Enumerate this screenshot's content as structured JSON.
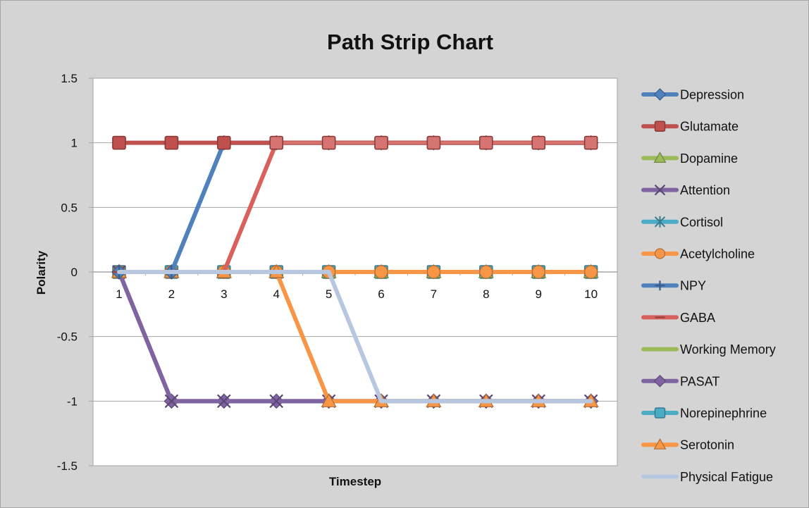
{
  "chart_data": {
    "type": "line",
    "title": "Path Strip Chart",
    "xlabel": "Timestep",
    "ylabel": "Polarity",
    "categories": [
      "1",
      "2",
      "3",
      "4",
      "5",
      "6",
      "7",
      "8",
      "9",
      "10"
    ],
    "yticks": [
      "1.5",
      "1",
      "0.5",
      "0",
      "-0.5",
      "-1",
      "-1.5"
    ],
    "ylim": [
      -1.5,
      1.5
    ],
    "grid": true,
    "legend_position": "right",
    "series": [
      {
        "name": "Depression",
        "values": [
          0,
          0,
          1,
          1,
          1,
          1,
          1,
          1,
          1,
          1
        ],
        "color": "#4f81bd",
        "marker": "diamond"
      },
      {
        "name": "Glutamate",
        "values": [
          1,
          1,
          1,
          1,
          1,
          1,
          1,
          1,
          1,
          1
        ],
        "color": "#c0504d",
        "marker": "square"
      },
      {
        "name": "Dopamine",
        "values": [
          0,
          0,
          0,
          0,
          0,
          0,
          0,
          0,
          0,
          0
        ],
        "color": "#9bbb59",
        "marker": "triangle"
      },
      {
        "name": "Attention",
        "values": [
          0,
          -1,
          -1,
          -1,
          -1,
          -1,
          -1,
          -1,
          -1,
          -1
        ],
        "color": "#8064a2",
        "marker": "x"
      },
      {
        "name": "Cortisol",
        "values": [
          0,
          0,
          0,
          0,
          0,
          0,
          0,
          0,
          0,
          0
        ],
        "color": "#4bacc6",
        "marker": "star"
      },
      {
        "name": "Acetylcholine",
        "values": [
          0,
          0,
          0,
          0,
          0,
          0,
          0,
          0,
          0,
          0
        ],
        "color": "#f79646",
        "marker": "circle"
      },
      {
        "name": "NPY",
        "values": [
          0,
          0,
          1,
          1,
          1,
          1,
          1,
          1,
          1,
          1
        ],
        "color": "#4f81bd",
        "marker": "plus"
      },
      {
        "name": "GABA",
        "values": [
          0,
          0,
          0,
          1,
          1,
          1,
          1,
          1,
          1,
          1
        ],
        "color": "#d9605c",
        "marker": "dash"
      },
      {
        "name": "Working Memory",
        "values": [
          0,
          0,
          0,
          0,
          0,
          0,
          0,
          0,
          0,
          0
        ],
        "color": "#9bbb59",
        "marker": "none"
      },
      {
        "name": "PASAT",
        "values": [
          0,
          -1,
          -1,
          -1,
          -1,
          -1,
          -1,
          -1,
          -1,
          -1
        ],
        "color": "#8064a2",
        "marker": "diamond"
      },
      {
        "name": "Norepinephrine",
        "values": [
          0,
          0,
          0,
          0,
          0,
          0,
          0,
          0,
          0,
          0
        ],
        "color": "#4bacc6",
        "marker": "square"
      },
      {
        "name": "Serotonin",
        "values": [
          0,
          0,
          0,
          0,
          -1,
          -1,
          -1,
          -1,
          -1,
          -1
        ],
        "color": "#f79646",
        "marker": "triangle"
      },
      {
        "name": "Physical Fatigue",
        "values": [
          0,
          0,
          0,
          0,
          0,
          -1,
          -1,
          -1,
          -1,
          -1
        ],
        "color": "#b8c7e0",
        "marker": "none"
      }
    ],
    "draw_order": [
      "Cortisol",
      "Norepinephrine",
      "Dopamine",
      "Working Memory",
      "Acetylcholine",
      "PASAT",
      "Attention",
      "Serotonin",
      "Depression",
      "NPY",
      "GABA",
      "Glutamate",
      "Physical Fatigue"
    ],
    "glutamate_overlay_color": "#d57470"
  }
}
